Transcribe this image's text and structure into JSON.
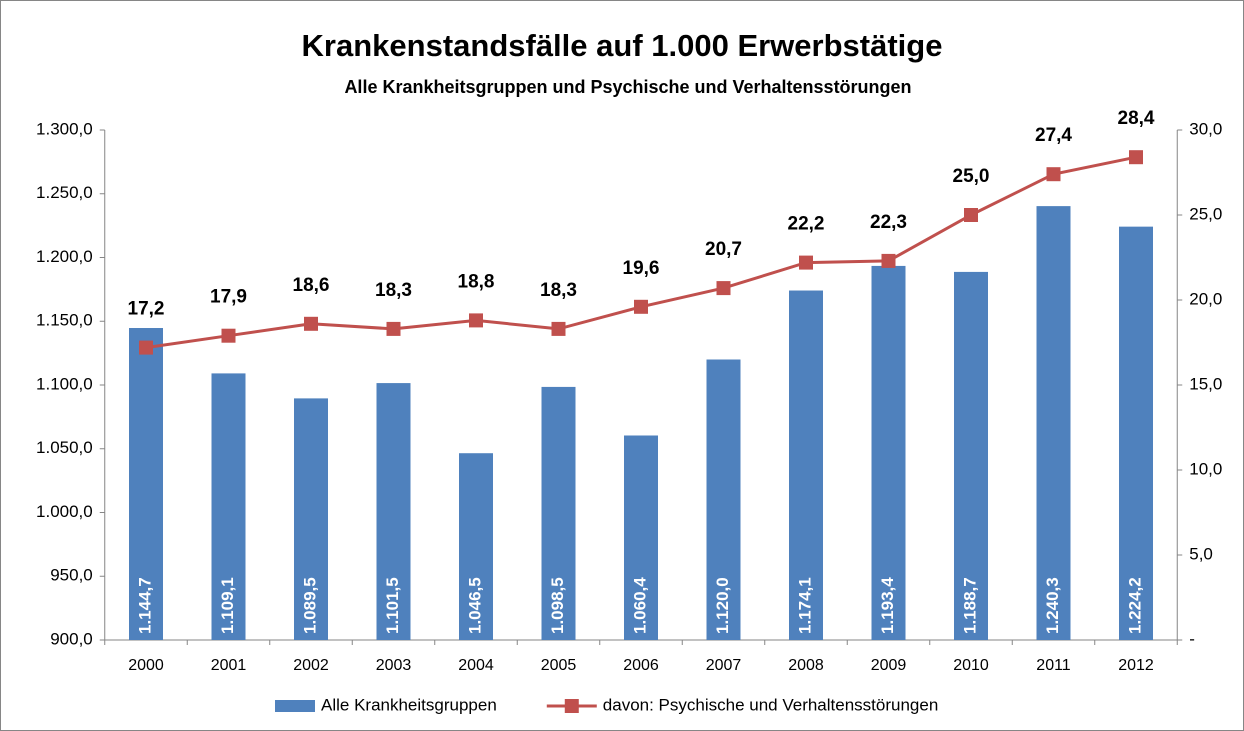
{
  "chart_data": {
    "type": "bar",
    "title": "Krankenstandsfälle auf 1.000 Erwerbstätige",
    "subtitle": "Alle Krankheitsgruppen und Psychische und Verhaltensstörungen",
    "categories": [
      "2000",
      "2001",
      "2002",
      "2003",
      "2004",
      "2005",
      "2006",
      "2007",
      "2008",
      "2009",
      "2010",
      "2011",
      "2012"
    ],
    "series": [
      {
        "name": "Alle Krankheitsgruppen",
        "type": "bar",
        "color": "#4f81bd",
        "values": [
          1144.7,
          1109.1,
          1089.5,
          1101.5,
          1046.5,
          1098.5,
          1060.4,
          1120.0,
          1174.1,
          1193.4,
          1188.7,
          1240.3,
          1224.2
        ],
        "value_labels": [
          "1.144,7",
          "1.109,1",
          "1.089,5",
          "1.101,5",
          "1.046,5",
          "1.098,5",
          "1.060,4",
          "1.120,0",
          "1.174,1",
          "1.193,4",
          "1.188,7",
          "1.240,3",
          "1.224,2"
        ]
      },
      {
        "name": "davon: Psychische und Verhaltensstörungen",
        "type": "line",
        "axis": "y2",
        "color": "#c0504d",
        "values": [
          17.2,
          17.9,
          18.6,
          18.3,
          18.8,
          18.3,
          19.6,
          20.7,
          22.2,
          22.3,
          25.0,
          27.4,
          28.4
        ],
        "value_labels": [
          "17,2",
          "17,9",
          "18,6",
          "18,3",
          "18,8",
          "18,3",
          "19,6",
          "20,7",
          "22,2",
          "22,3",
          "25,0",
          "27,4",
          "28,4"
        ]
      }
    ],
    "ylim": [
      900,
      1300
    ],
    "yticks": [
      {
        "value": 900,
        "label": "900,0"
      },
      {
        "value": 950,
        "label": "950,0"
      },
      {
        "value": 1000,
        "label": "1.000,0"
      },
      {
        "value": 1050,
        "label": "1.050,0"
      },
      {
        "value": 1100,
        "label": "1.100,0"
      },
      {
        "value": 1150,
        "label": "1.150,0"
      },
      {
        "value": 1200,
        "label": "1.200,0"
      },
      {
        "value": 1250,
        "label": "1.250,0"
      },
      {
        "value": 1300,
        "label": "1.300,0"
      }
    ],
    "y2lim": [
      0,
      30
    ],
    "y2ticks": [
      {
        "value": 0,
        "label": "-"
      },
      {
        "value": 5,
        "label": "5,0"
      },
      {
        "value": 10,
        "label": "10,0"
      },
      {
        "value": 15,
        "label": "15,0"
      },
      {
        "value": 20,
        "label": "20,0"
      },
      {
        "value": 25,
        "label": "25,0"
      },
      {
        "value": 30,
        "label": "30,0"
      }
    ],
    "grid": false,
    "legend": "bottom"
  }
}
